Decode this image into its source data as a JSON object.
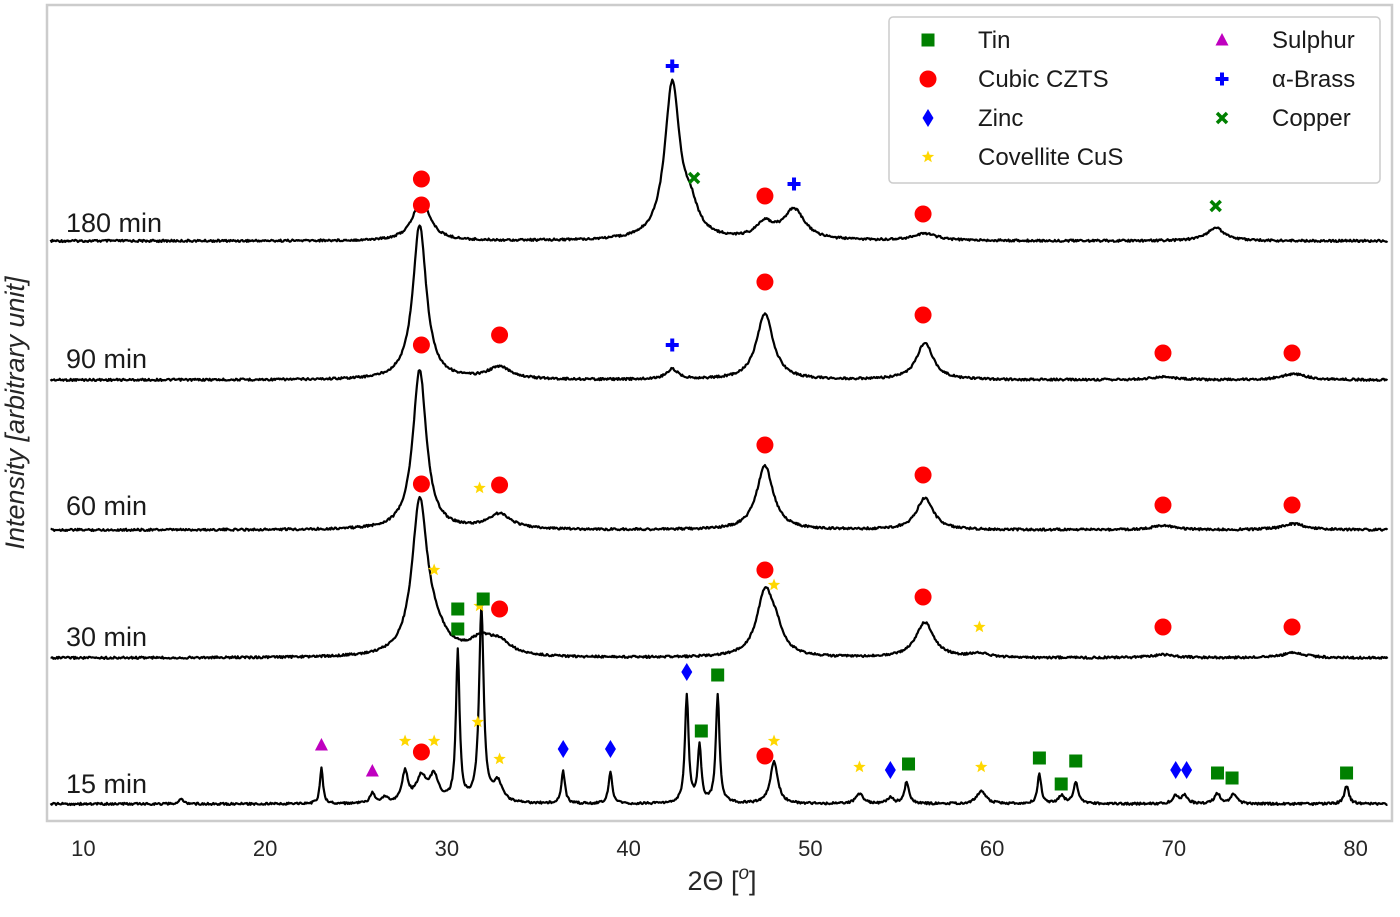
{
  "chart_data": {
    "type": "line",
    "xlabel": "2Θ [o]",
    "ylabel": "Intensity [arbitrary unit]",
    "xlim": [
      8,
      82
    ],
    "x_ticks": [
      10,
      20,
      30,
      40,
      50,
      60,
      70,
      80
    ],
    "grid": false,
    "legend_position": "top-right",
    "legend": [
      {
        "label": "Tin",
        "marker": "square",
        "color": "#008000"
      },
      {
        "label": "Cubic CZTS",
        "marker": "circle",
        "color": "#ff0000"
      },
      {
        "label": "Zinc",
        "marker": "diamond",
        "color": "#0000ff"
      },
      {
        "label": "Covellite CuS",
        "marker": "star",
        "color": "#ffd700"
      },
      {
        "label": "Sulphur",
        "marker": "triangle",
        "color": "#bf00bf"
      },
      {
        "label": "α-Brass",
        "marker": "plus",
        "color": "#0000ff"
      },
      {
        "label": "Copper",
        "marker": "x",
        "color": "#008000"
      }
    ],
    "series": [
      {
        "name": "180 min",
        "peaks": [
          {
            "pos": 28.6,
            "h": 0.42,
            "w": 0.55
          },
          {
            "pos": 42.4,
            "h": 1.55,
            "w": 0.5
          },
          {
            "pos": 43.4,
            "h": 0.25,
            "w": 0.5
          },
          {
            "pos": 47.5,
            "h": 0.15,
            "w": 0.6
          },
          {
            "pos": 49.1,
            "h": 0.3,
            "w": 0.7
          },
          {
            "pos": 56.3,
            "h": 0.07,
            "w": 0.8
          },
          {
            "pos": 72.3,
            "h": 0.13,
            "w": 0.6
          }
        ],
        "markers": [
          {
            "phase": "Cubic CZTS",
            "x": 28.6,
            "y": 0.62
          },
          {
            "phase": "α-Brass",
            "x": 42.4,
            "y": 1.75
          },
          {
            "phase": "Copper",
            "x": 43.6,
            "y": 0.63
          },
          {
            "phase": "Cubic CZTS",
            "x": 47.5,
            "y": 0.45
          },
          {
            "phase": "α-Brass",
            "x": 49.1,
            "y": 0.57
          },
          {
            "phase": "Cubic CZTS",
            "x": 56.2,
            "y": 0.27
          },
          {
            "phase": "Copper",
            "x": 72.3,
            "y": 0.35
          }
        ]
      },
      {
        "name": "90 min",
        "peaks": [
          {
            "pos": 28.5,
            "h": 1.55,
            "w": 0.45
          },
          {
            "pos": 32.9,
            "h": 0.12,
            "w": 0.8
          },
          {
            "pos": 42.4,
            "h": 0.1,
            "w": 0.4
          },
          {
            "pos": 47.5,
            "h": 0.66,
            "w": 0.55
          },
          {
            "pos": 56.3,
            "h": 0.37,
            "w": 0.55
          },
          {
            "pos": 69.4,
            "h": 0.03,
            "w": 0.8
          },
          {
            "pos": 76.6,
            "h": 0.06,
            "w": 0.8
          }
        ],
        "markers": [
          {
            "phase": "Cubic CZTS",
            "x": 28.6,
            "y": 1.75
          },
          {
            "phase": "Cubic CZTS",
            "x": 32.9,
            "y": 0.45
          },
          {
            "phase": "α-Brass",
            "x": 42.4,
            "y": 0.35
          },
          {
            "phase": "Cubic CZTS",
            "x": 47.5,
            "y": 0.98
          },
          {
            "phase": "Cubic CZTS",
            "x": 56.2,
            "y": 0.65
          },
          {
            "phase": "Cubic CZTS",
            "x": 69.4,
            "y": 0.27
          },
          {
            "phase": "Cubic CZTS",
            "x": 76.5,
            "y": 0.27
          }
        ]
      },
      {
        "name": "60 min",
        "peaks": [
          {
            "pos": 28.5,
            "h": 1.6,
            "w": 0.45
          },
          {
            "pos": 32.9,
            "h": 0.15,
            "w": 0.8
          },
          {
            "pos": 47.5,
            "h": 0.64,
            "w": 0.55
          },
          {
            "pos": 56.3,
            "h": 0.32,
            "w": 0.55
          },
          {
            "pos": 69.4,
            "h": 0.04,
            "w": 0.8
          },
          {
            "pos": 76.6,
            "h": 0.06,
            "w": 0.8
          }
        ],
        "markers": [
          {
            "phase": "Cubic CZTS",
            "x": 28.6,
            "y": 1.85
          },
          {
            "phase": "Covellite CuS",
            "x": 31.8,
            "y": 0.42
          },
          {
            "phase": "Cubic CZTS",
            "x": 32.9,
            "y": 0.45
          },
          {
            "phase": "Cubic CZTS",
            "x": 47.5,
            "y": 0.85
          },
          {
            "phase": "Cubic CZTS",
            "x": 56.2,
            "y": 0.55
          },
          {
            "phase": "Cubic CZTS",
            "x": 69.4,
            "y": 0.25
          },
          {
            "phase": "Cubic CZTS",
            "x": 76.5,
            "y": 0.25
          }
        ]
      },
      {
        "name": "30 min",
        "peaks": [
          {
            "pos": 28.5,
            "h": 1.5,
            "w": 0.5
          },
          {
            "pos": 29.3,
            "h": 0.2,
            "w": 0.8
          },
          {
            "pos": 31.9,
            "h": 0.15,
            "w": 0.8
          },
          {
            "pos": 32.9,
            "h": 0.12,
            "w": 0.8
          },
          {
            "pos": 47.5,
            "h": 0.62,
            "w": 0.55
          },
          {
            "pos": 48.1,
            "h": 0.2,
            "w": 0.5
          },
          {
            "pos": 56.3,
            "h": 0.35,
            "w": 0.6
          },
          {
            "pos": 59.3,
            "h": 0.04,
            "w": 0.6
          },
          {
            "pos": 69.4,
            "h": 0.03,
            "w": 0.8
          },
          {
            "pos": 76.6,
            "h": 0.05,
            "w": 0.8
          }
        ],
        "markers": [
          {
            "phase": "Cubic CZTS",
            "x": 28.6,
            "y": 1.74
          },
          {
            "phase": "Covellite CuS",
            "x": 29.3,
            "y": 0.88
          },
          {
            "phase": "Tin",
            "x": 30.6,
            "y": 0.49
          },
          {
            "phase": "Covellite CuS",
            "x": 31.8,
            "y": 0.52
          },
          {
            "phase": "Cubic CZTS",
            "x": 32.9,
            "y": 0.49
          },
          {
            "phase": "Cubic CZTS",
            "x": 47.5,
            "y": 0.88
          },
          {
            "phase": "Covellite CuS",
            "x": 48.0,
            "y": 0.73
          },
          {
            "phase": "Cubic CZTS",
            "x": 56.2,
            "y": 0.61
          },
          {
            "phase": "Covellite CuS",
            "x": 59.3,
            "y": 0.31
          },
          {
            "phase": "Cubic CZTS",
            "x": 69.4,
            "y": 0.31
          },
          {
            "phase": "Cubic CZTS",
            "x": 76.5,
            "y": 0.31
          }
        ]
      },
      {
        "name": "15 min",
        "peaks": [
          {
            "pos": 15.4,
            "h": 0.05,
            "w": 0.15
          },
          {
            "pos": 23.1,
            "h": 0.36,
            "w": 0.1
          },
          {
            "pos": 25.9,
            "h": 0.1,
            "w": 0.15
          },
          {
            "pos": 26.6,
            "h": 0.06,
            "w": 0.15
          },
          {
            "pos": 27.7,
            "h": 0.3,
            "w": 0.2
          },
          {
            "pos": 28.6,
            "h": 0.25,
            "w": 0.35
          },
          {
            "pos": 29.3,
            "h": 0.25,
            "w": 0.3
          },
          {
            "pos": 30.6,
            "h": 1.5,
            "w": 0.12
          },
          {
            "pos": 31.9,
            "h": 1.95,
            "w": 0.15
          },
          {
            "pos": 32.8,
            "h": 0.2,
            "w": 0.3
          },
          {
            "pos": 36.4,
            "h": 0.32,
            "w": 0.12
          },
          {
            "pos": 39.0,
            "h": 0.32,
            "w": 0.12
          },
          {
            "pos": 43.2,
            "h": 1.08,
            "w": 0.12
          },
          {
            "pos": 43.9,
            "h": 0.56,
            "w": 0.12
          },
          {
            "pos": 44.9,
            "h": 1.09,
            "w": 0.12
          },
          {
            "pos": 48.0,
            "h": 0.42,
            "w": 0.25
          },
          {
            "pos": 52.7,
            "h": 0.1,
            "w": 0.25
          },
          {
            "pos": 54.4,
            "h": 0.06,
            "w": 0.2
          },
          {
            "pos": 55.3,
            "h": 0.22,
            "w": 0.15
          },
          {
            "pos": 59.4,
            "h": 0.13,
            "w": 0.3
          },
          {
            "pos": 62.6,
            "h": 0.3,
            "w": 0.12
          },
          {
            "pos": 63.8,
            "h": 0.08,
            "w": 0.2
          },
          {
            "pos": 64.6,
            "h": 0.22,
            "w": 0.15
          },
          {
            "pos": 70.1,
            "h": 0.08,
            "w": 0.2
          },
          {
            "pos": 70.6,
            "h": 0.08,
            "w": 0.2
          },
          {
            "pos": 72.4,
            "h": 0.1,
            "w": 0.2
          },
          {
            "pos": 73.3,
            "h": 0.1,
            "w": 0.2
          },
          {
            "pos": 79.5,
            "h": 0.18,
            "w": 0.15
          }
        ],
        "markers": [
          {
            "phase": "Sulphur",
            "x": 23.1,
            "y": 0.59
          },
          {
            "phase": "Sulphur",
            "x": 25.9,
            "y": 0.33
          },
          {
            "phase": "Covellite CuS",
            "x": 27.7,
            "y": 0.63
          },
          {
            "phase": "Cubic CZTS",
            "x": 28.6,
            "y": 0.52
          },
          {
            "phase": "Covellite CuS",
            "x": 29.3,
            "y": 0.63
          },
          {
            "phase": "Tin",
            "x": 30.6,
            "y": 1.75
          },
          {
            "phase": "Covellite CuS",
            "x": 31.7,
            "y": 0.82
          },
          {
            "phase": "Tin",
            "x": 32.0,
            "y": 2.05
          },
          {
            "phase": "Covellite CuS",
            "x": 32.9,
            "y": 0.45
          },
          {
            "phase": "Zinc",
            "x": 36.4,
            "y": 0.55
          },
          {
            "phase": "Zinc",
            "x": 39.0,
            "y": 0.55
          },
          {
            "phase": "Zinc",
            "x": 43.2,
            "y": 1.32
          },
          {
            "phase": "Tin",
            "x": 44.0,
            "y": 0.73
          },
          {
            "phase": "Tin",
            "x": 44.9,
            "y": 1.29
          },
          {
            "phase": "Cubic CZTS",
            "x": 47.5,
            "y": 0.48
          },
          {
            "phase": "Covellite CuS",
            "x": 48.0,
            "y": 0.63
          },
          {
            "phase": "Covellite CuS",
            "x": 52.7,
            "y": 0.37
          },
          {
            "phase": "Zinc",
            "x": 54.4,
            "y": 0.34
          },
          {
            "phase": "Tin",
            "x": 55.4,
            "y": 0.4
          },
          {
            "phase": "Covellite CuS",
            "x": 59.4,
            "y": 0.37
          },
          {
            "phase": "Tin",
            "x": 62.6,
            "y": 0.46
          },
          {
            "phase": "Tin",
            "x": 63.8,
            "y": 0.2
          },
          {
            "phase": "Tin",
            "x": 64.6,
            "y": 0.43
          },
          {
            "phase": "Zinc",
            "x": 70.1,
            "y": 0.34
          },
          {
            "phase": "Zinc",
            "x": 70.7,
            "y": 0.34
          },
          {
            "phase": "Tin",
            "x": 72.4,
            "y": 0.31
          },
          {
            "phase": "Tin",
            "x": 73.2,
            "y": 0.26
          },
          {
            "phase": "Tin",
            "x": 79.5,
            "y": 0.31
          }
        ]
      }
    ]
  }
}
